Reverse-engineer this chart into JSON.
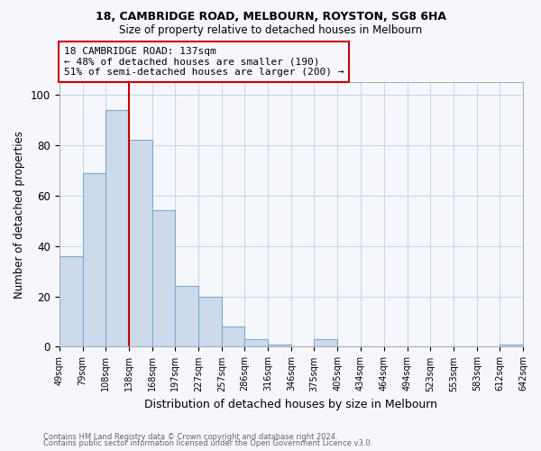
{
  "title1": "18, CAMBRIDGE ROAD, MELBOURN, ROYSTON, SG8 6HA",
  "title2": "Size of property relative to detached houses in Melbourn",
  "xlabel": "Distribution of detached houses by size in Melbourn",
  "ylabel": "Number of detached properties",
  "footnote1": "Contains HM Land Registry data © Crown copyright and database right 2024.",
  "footnote2": "Contains public sector information licensed under the Open Government Licence v3.0.",
  "bar_color": "#ccdaeb",
  "bar_edge_color": "#7aaacf",
  "bin_edges": [
    49,
    79,
    108,
    138,
    168,
    197,
    227,
    257,
    286,
    316,
    346,
    375,
    405,
    434,
    464,
    494,
    523,
    553,
    583,
    612,
    642
  ],
  "values": [
    36,
    69,
    94,
    82,
    54,
    24,
    20,
    8,
    3,
    1,
    0,
    3,
    0,
    0,
    0,
    0,
    0,
    0,
    0,
    1,
    1
  ],
  "ylim": [
    0,
    105
  ],
  "yticks": [
    0,
    20,
    40,
    60,
    80,
    100
  ],
  "property_line_x": 138,
  "property_line_color": "#cc0000",
  "annotation_text": "18 CAMBRIDGE ROAD: 137sqm\n← 48% of detached houses are smaller (190)\n51% of semi-detached houses are larger (200) →",
  "annotation_box_color": "#cc0000",
  "bg_color": "#f5f7fc",
  "grid_color": "#c8d4e8"
}
